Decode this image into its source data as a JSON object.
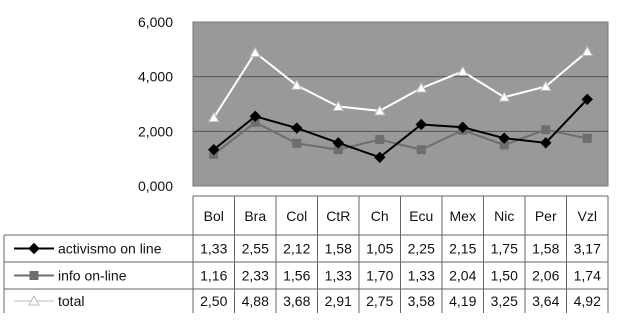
{
  "chart_data": {
    "type": "line",
    "title": "",
    "xlabel": "",
    "ylabel": "",
    "ylim": [
      0,
      6
    ],
    "yticks": [
      "0,000",
      "2,000",
      "4,000",
      "6,000"
    ],
    "categories": [
      "Bol",
      "Bra",
      "Col",
      "CtR",
      "Ch",
      "Ecu",
      "Mex",
      "Nic",
      "Per",
      "Vzl"
    ],
    "grid": true,
    "legend": "data-table-left",
    "series": [
      {
        "name": "activismo on line",
        "values": [
          1.33,
          2.55,
          2.12,
          1.58,
          1.05,
          2.25,
          2.15,
          1.75,
          1.58,
          3.17
        ],
        "labels": [
          "1,33",
          "2,55",
          "2,12",
          "1,58",
          "1,05",
          "2,25",
          "2,15",
          "1,75",
          "1,58",
          "3,17"
        ],
        "color": "#000000",
        "marker": "diamond"
      },
      {
        "name": "info on-line",
        "values": [
          1.16,
          2.33,
          1.56,
          1.33,
          1.7,
          1.33,
          2.04,
          1.5,
          2.06,
          1.74
        ],
        "labels": [
          "1,16",
          "2,33",
          "1,56",
          "1,33",
          "1,70",
          "1,33",
          "2,04",
          "1,50",
          "2,06",
          "1,74"
        ],
        "color": "#6e6e6e",
        "marker": "square"
      },
      {
        "name": "total",
        "values": [
          2.5,
          4.88,
          3.68,
          2.91,
          2.75,
          3.58,
          4.19,
          3.25,
          3.64,
          4.92
        ],
        "labels": [
          "2,50",
          "4,88",
          "3,68",
          "2,91",
          "2,75",
          "3,58",
          "4,19",
          "3,25",
          "3,64",
          "4,92"
        ],
        "color": "#ffffff",
        "marker": "triangle"
      }
    ],
    "colors": {
      "plot_background": "#999999",
      "gridline": "#555555",
      "table_border": "#666666"
    }
  }
}
